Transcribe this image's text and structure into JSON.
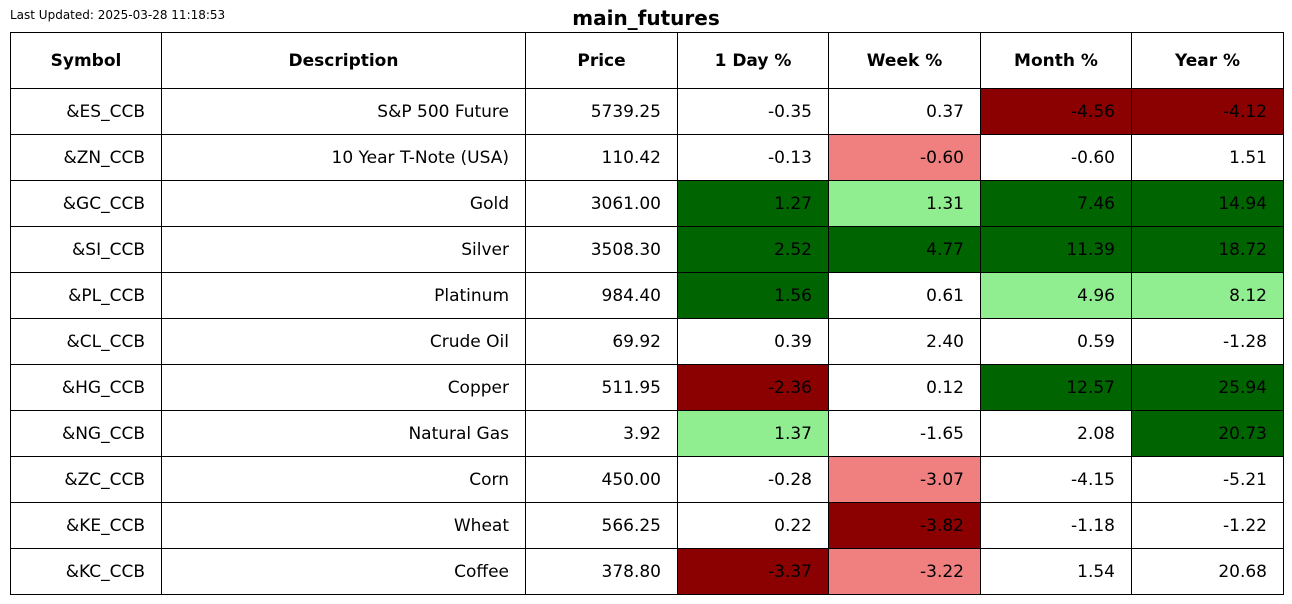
{
  "header": {
    "last_updated": "Last Updated: 2025-03-28 11:18:53",
    "title": "main_futures"
  },
  "colors": {
    "strong_negative": "#8b0000",
    "negative": "#f08080",
    "positive": "#90ee90",
    "strong_positive": "#006400",
    "neutral": "#ffffff"
  },
  "chart_data": {
    "type": "table",
    "title": "main_futures",
    "columns": [
      "Symbol",
      "Description",
      "Price",
      "1 Day %",
      "Week %",
      "Month %",
      "Year %"
    ],
    "rows": [
      [
        "&ES_CCB",
        "S&P 500 Future",
        "5739.25",
        "-0.35",
        "0.37",
        "-4.56",
        "-4.12"
      ],
      [
        "&ZN_CCB",
        "10 Year T-Note (USA)",
        "110.42",
        "-0.13",
        "-0.60",
        "-0.60",
        "1.51"
      ],
      [
        "&GC_CCB",
        "Gold",
        "3061.00",
        "1.27",
        "1.31",
        "7.46",
        "14.94"
      ],
      [
        "&SI_CCB",
        "Silver",
        "3508.30",
        "2.52",
        "4.77",
        "11.39",
        "18.72"
      ],
      [
        "&PL_CCB",
        "Platinum",
        "984.40",
        "1.56",
        "0.61",
        "4.96",
        "8.12"
      ],
      [
        "&CL_CCB",
        "Crude Oil",
        "69.92",
        "0.39",
        "2.40",
        "0.59",
        "-1.28"
      ],
      [
        "&HG_CCB",
        "Copper",
        "511.95",
        "-2.36",
        "0.12",
        "12.57",
        "25.94"
      ],
      [
        "&NG_CCB",
        "Natural Gas",
        "3.92",
        "1.37",
        "-1.65",
        "2.08",
        "20.73"
      ],
      [
        "&ZC_CCB",
        "Corn",
        "450.00",
        "-0.28",
        "-3.07",
        "-4.15",
        "-5.21"
      ],
      [
        "&KE_CCB",
        "Wheat",
        "566.25",
        "0.22",
        "-3.82",
        "-1.18",
        "-1.22"
      ],
      [
        "&KC_CCB",
        "Coffee",
        "378.80",
        "-3.37",
        "-3.22",
        "1.54",
        "20.68"
      ]
    ],
    "cell_colors": [
      [
        "neutral",
        "neutral",
        "neutral",
        "neutral",
        "neutral",
        "strong_negative",
        "strong_negative"
      ],
      [
        "neutral",
        "neutral",
        "neutral",
        "neutral",
        "negative",
        "neutral",
        "neutral"
      ],
      [
        "neutral",
        "neutral",
        "neutral",
        "strong_positive",
        "positive",
        "strong_positive",
        "strong_positive"
      ],
      [
        "neutral",
        "neutral",
        "neutral",
        "strong_positive",
        "strong_positive",
        "strong_positive",
        "strong_positive"
      ],
      [
        "neutral",
        "neutral",
        "neutral",
        "strong_positive",
        "neutral",
        "positive",
        "positive"
      ],
      [
        "neutral",
        "neutral",
        "neutral",
        "neutral",
        "neutral",
        "neutral",
        "neutral"
      ],
      [
        "neutral",
        "neutral",
        "neutral",
        "strong_negative",
        "neutral",
        "strong_positive",
        "strong_positive"
      ],
      [
        "neutral",
        "neutral",
        "neutral",
        "positive",
        "neutral",
        "neutral",
        "strong_positive"
      ],
      [
        "neutral",
        "neutral",
        "neutral",
        "neutral",
        "negative",
        "neutral",
        "neutral"
      ],
      [
        "neutral",
        "neutral",
        "neutral",
        "neutral",
        "strong_negative",
        "neutral",
        "neutral"
      ],
      [
        "neutral",
        "neutral",
        "neutral",
        "strong_negative",
        "negative",
        "neutral",
        "neutral"
      ]
    ]
  }
}
